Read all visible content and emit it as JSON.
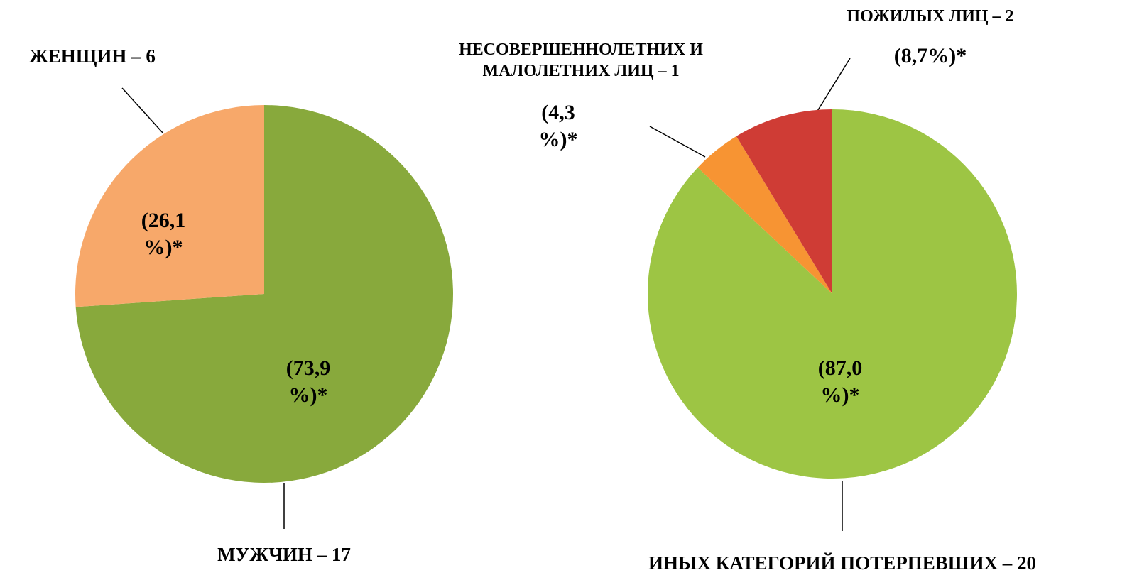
{
  "chart_data": [
    {
      "type": "pie",
      "categories": [
        "МУЖЧИН – 17",
        "ЖЕНЩИН – 6"
      ],
      "values": [
        73.9,
        26.1
      ],
      "value_labels": [
        "(73,9 %)*",
        "(26,1 %)*"
      ],
      "colors": [
        "#88a93c",
        "#f7a86a"
      ]
    },
    {
      "type": "pie",
      "categories": [
        "ИНЫХ КАТЕГОРИЙ ПОТЕРПЕВШИХ – 20",
        "НЕСОВЕРШЕННОЛЕТНИХ И МАЛОЛЕТНИХ ЛИЦ – 1",
        "ПОЖИЛЫХ ЛИЦ – 2"
      ],
      "values": [
        87.0,
        4.3,
        8.7
      ],
      "value_labels": [
        "(87,0 %)*",
        "(4,3 %)*",
        "(8,7%)*"
      ],
      "colors": [
        "#9dc544",
        "#f79433",
        "#cf3c35"
      ]
    }
  ]
}
